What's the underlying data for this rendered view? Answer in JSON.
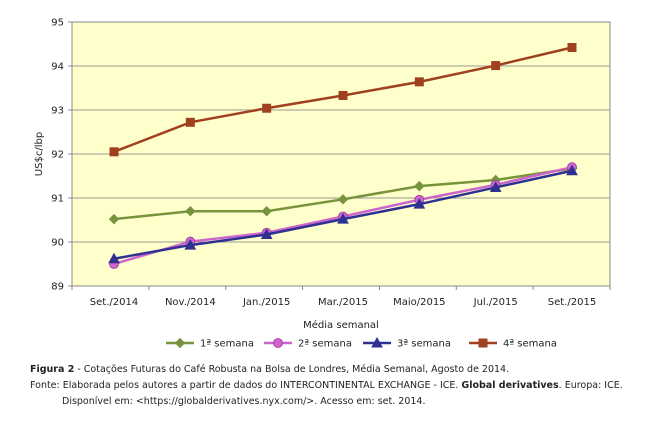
{
  "chart_data": {
    "type": "line",
    "categories": [
      "Set./2014",
      "Nov./2014",
      "Jan./2015",
      "Mar./2015",
      "Maio/2015",
      "Jul./2015",
      "Set./2015"
    ],
    "series": [
      {
        "name": "1ª semana",
        "color": "#77933c",
        "marker": "diamond",
        "values": [
          90.52,
          90.7,
          90.7,
          90.97,
          91.27,
          91.41,
          91.67
        ]
      },
      {
        "name": "2ª semana",
        "color": "#cc66cc",
        "marker": "circle",
        "values": [
          89.5,
          90.01,
          90.21,
          90.58,
          90.96,
          91.3,
          91.7
        ]
      },
      {
        "name": "3ª semana",
        "color": "#2e3192",
        "marker": "triangle",
        "values": [
          89.62,
          89.93,
          90.17,
          90.52,
          90.86,
          91.24,
          91.62
        ]
      },
      {
        "name": "4ª semana",
        "color": "#a0401f",
        "marker": "square",
        "values": [
          92.05,
          92.72,
          93.04,
          93.33,
          93.64,
          94.01,
          94.42
        ]
      }
    ],
    "xlabel": "Média semanal",
    "ylabel": "US$c/lbp",
    "ylim": [
      89,
      95
    ],
    "yticks": [
      89,
      90,
      91,
      92,
      93,
      94,
      95
    ],
    "grid": true,
    "legend": "bottom",
    "plot_background": "#ffffcc"
  },
  "caption": {
    "figure_label": "Figura 2",
    "figure_text": " - Cotações Futuras do Café Robusta na Bolsa de Londres, Média Semanal, Agosto de 2014.",
    "source_prefix": "Fonte: Elaborada pelos autores a partir de dados do INTERCONTINENTAL EXCHANGE - ICE. ",
    "source_bold": "Global derivatives",
    "source_suffix": ". Europa: ICE.",
    "available": "Disponível em: <https://globalderivatives.nyx.com/>. Acesso em: set. 2014."
  }
}
